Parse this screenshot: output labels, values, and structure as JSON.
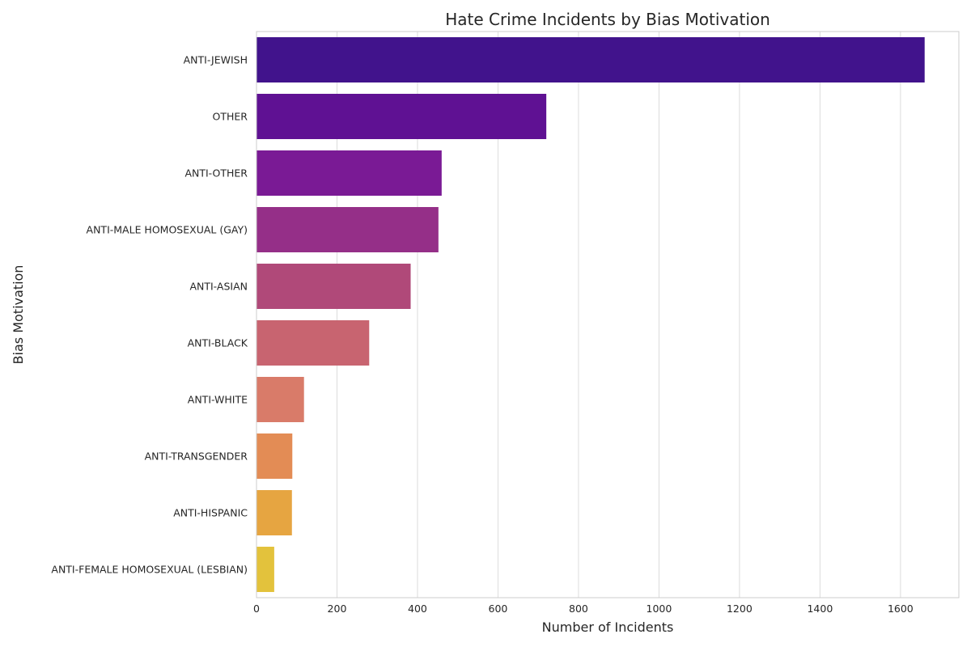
{
  "chart_data": {
    "type": "bar",
    "orientation": "horizontal",
    "title": "Hate Crime Incidents by Bias Motivation",
    "xlabel": "Number of Incidents",
    "ylabel": "Bias Motivation",
    "xlim": [
      0,
      1745
    ],
    "xticks": [
      0,
      200,
      400,
      600,
      800,
      1000,
      1200,
      1400,
      1600
    ],
    "grid": "vertical",
    "categories": [
      "ANTI-JEWISH",
      "OTHER",
      "ANTI-OTHER",
      "ANTI-MALE HOMOSEXUAL (GAY)",
      "ANTI-ASIAN",
      "ANTI-BLACK",
      "ANTI-WHITE",
      "ANTI-TRANSGENDER",
      "ANTI-HISPANIC",
      "ANTI-FEMALE HOMOSEXUAL (LESBIAN)"
    ],
    "values": [
      1660,
      720,
      460,
      452,
      383,
      280,
      118,
      89,
      88,
      44
    ],
    "colors": [
      "#41138c",
      "#5f1193",
      "#7a1a95",
      "#952f88",
      "#b04979",
      "#c86470",
      "#d97b69",
      "#e38c55",
      "#e6a541",
      "#e3c23c"
    ]
  }
}
